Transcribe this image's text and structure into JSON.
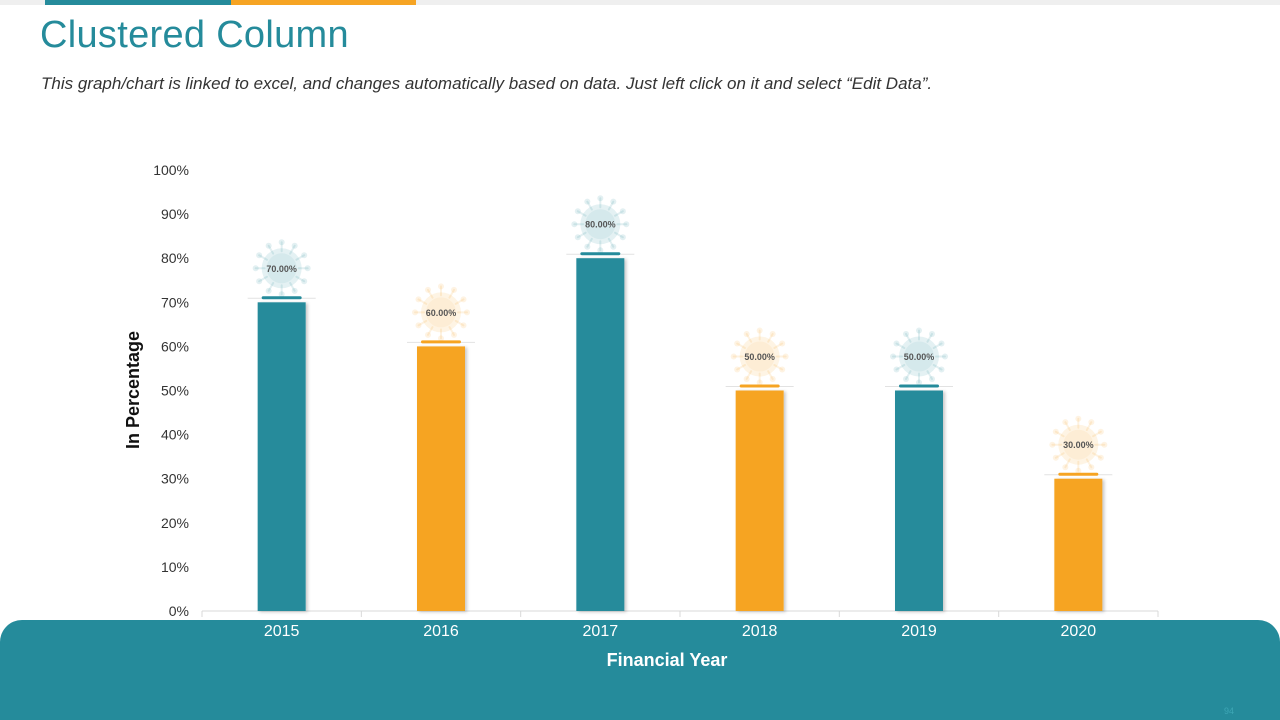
{
  "slide": {
    "title": "Clustered Column",
    "subtitle": "This graph/chart is linked to excel, and changes automatically based on data. Just left click on it and select “Edit Data”.",
    "page_number": "94"
  },
  "colors": {
    "teal": "#258b9b",
    "orange": "#f6a423",
    "footer": "#258b9b",
    "title": "#258b9b"
  },
  "chart_data": {
    "type": "bar",
    "categories": [
      "2015",
      "2016",
      "2017",
      "2018",
      "2019",
      "2020"
    ],
    "values": [
      70,
      60,
      80,
      50,
      50,
      30
    ],
    "data_labels": [
      "70.00%",
      "60.00%",
      "80.00%",
      "50.00%",
      "50.00%",
      "30.00%"
    ],
    "bar_colors": [
      "#258b9b",
      "#f6a423",
      "#258b9b",
      "#f6a423",
      "#258b9b",
      "#f6a423"
    ],
    "xlabel": "Financial Year",
    "ylabel": "In Percentage",
    "ylim": [
      0,
      100
    ],
    "yticks": [
      "0%",
      "10%",
      "20%",
      "30%",
      "40%",
      "50%",
      "60%",
      "70%",
      "80%",
      "90%",
      "100%"
    ],
    "grid": false,
    "legend": "none",
    "label_marker_icon": "virus-icon"
  }
}
